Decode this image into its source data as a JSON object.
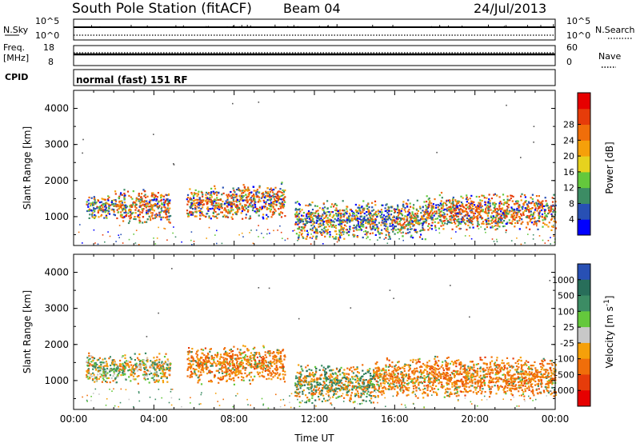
{
  "header": {
    "station": "South Pole Station (fitACF)",
    "beam": "Beam 04",
    "date": "24/Jul/2013"
  },
  "params": {
    "nsky": {
      "label": "N.Sky",
      "top": "10^5",
      "bottom": "10^0"
    },
    "nsearch": {
      "label": "N.Search",
      "top": "10^5",
      "bottom": "10^0"
    },
    "freq": {
      "label_line1": "Freq.",
      "label_line2": "[MHz]",
      "top": "18",
      "bottom": "8"
    },
    "nave": {
      "label": "Nave",
      "top": "60",
      "bottom": "0"
    },
    "cpid": {
      "label": "CPID",
      "value": "normal (fast) 151 RF"
    }
  },
  "chart_data": [
    {
      "type": "heatmap",
      "name": "power",
      "xlabel": "",
      "ylabel": "Slant Range [km]",
      "x_ticks": [
        "00:00",
        "04:00",
        "08:00",
        "12:00",
        "16:00",
        "20:00",
        "00:00"
      ],
      "y_ticks": [
        "1000",
        "2000",
        "3000",
        "4000"
      ],
      "ylim": [
        200,
        4500
      ],
      "colorbar": {
        "label": "Power [dB]",
        "ticks": [
          "4",
          "8",
          "12",
          "16",
          "20",
          "24",
          "28"
        ],
        "range": [
          0,
          30
        ],
        "colors": [
          "#0000ff",
          "#2850b4",
          "#3c8c64",
          "#64c83c",
          "#e6d21e",
          "#f5a00a",
          "#f06e0a",
          "#e63c0a",
          "#e60000"
        ]
      },
      "regions": [
        {
          "t_start": 0.6,
          "t_end": 2.0,
          "r_low": 900,
          "r_high": 1650,
          "level": "mixed"
        },
        {
          "t_start": 2.0,
          "t_end": 4.8,
          "r_low": 800,
          "r_high": 1800,
          "level": "strong"
        },
        {
          "t_start": 5.6,
          "t_end": 8.2,
          "r_low": 900,
          "r_high": 1900,
          "level": "strong"
        },
        {
          "t_start": 8.2,
          "t_end": 10.5,
          "r_low": 900,
          "r_high": 2000,
          "level": "strong"
        },
        {
          "t_start": 11.0,
          "t_end": 17.5,
          "r_low": 350,
          "r_high": 1500,
          "level": "mixed"
        },
        {
          "t_start": 17.5,
          "t_end": 24.0,
          "r_low": 600,
          "r_high": 1700,
          "level": "strong"
        }
      ]
    },
    {
      "type": "heatmap",
      "name": "velocity",
      "xlabel": "Time UT",
      "ylabel": "Slant Range [km]",
      "x_ticks": [
        "00:00",
        "04:00",
        "08:00",
        "12:00",
        "16:00",
        "20:00",
        "00:00"
      ],
      "y_ticks": [
        "1000",
        "2000",
        "3000",
        "4000"
      ],
      "ylim": [
        200,
        4500
      ],
      "colorbar": {
        "label": "Velocity [m s-1]",
        "ticks": [
          "1000",
          "500",
          "100",
          "25",
          "-25",
          "-100",
          "-500",
          "-1000"
        ],
        "colors": [
          "#2850b4",
          "#286e5a",
          "#3c8c64",
          "#64c83c",
          "#c8c8c8",
          "#f5a00a",
          "#f06e0a",
          "#e63c0a",
          "#e60000"
        ]
      },
      "regions": [
        {
          "t_start": 0.6,
          "t_end": 4.8,
          "r_low": 900,
          "r_high": 1800,
          "level": "mixed-green"
        },
        {
          "t_start": 5.6,
          "t_end": 10.5,
          "r_low": 900,
          "r_high": 2000,
          "level": "orange"
        },
        {
          "t_start": 11.0,
          "t_end": 15.0,
          "r_low": 350,
          "r_high": 1500,
          "level": "green-orange"
        },
        {
          "t_start": 15.0,
          "t_end": 24.0,
          "r_low": 500,
          "r_high": 1700,
          "level": "orange"
        }
      ]
    }
  ]
}
